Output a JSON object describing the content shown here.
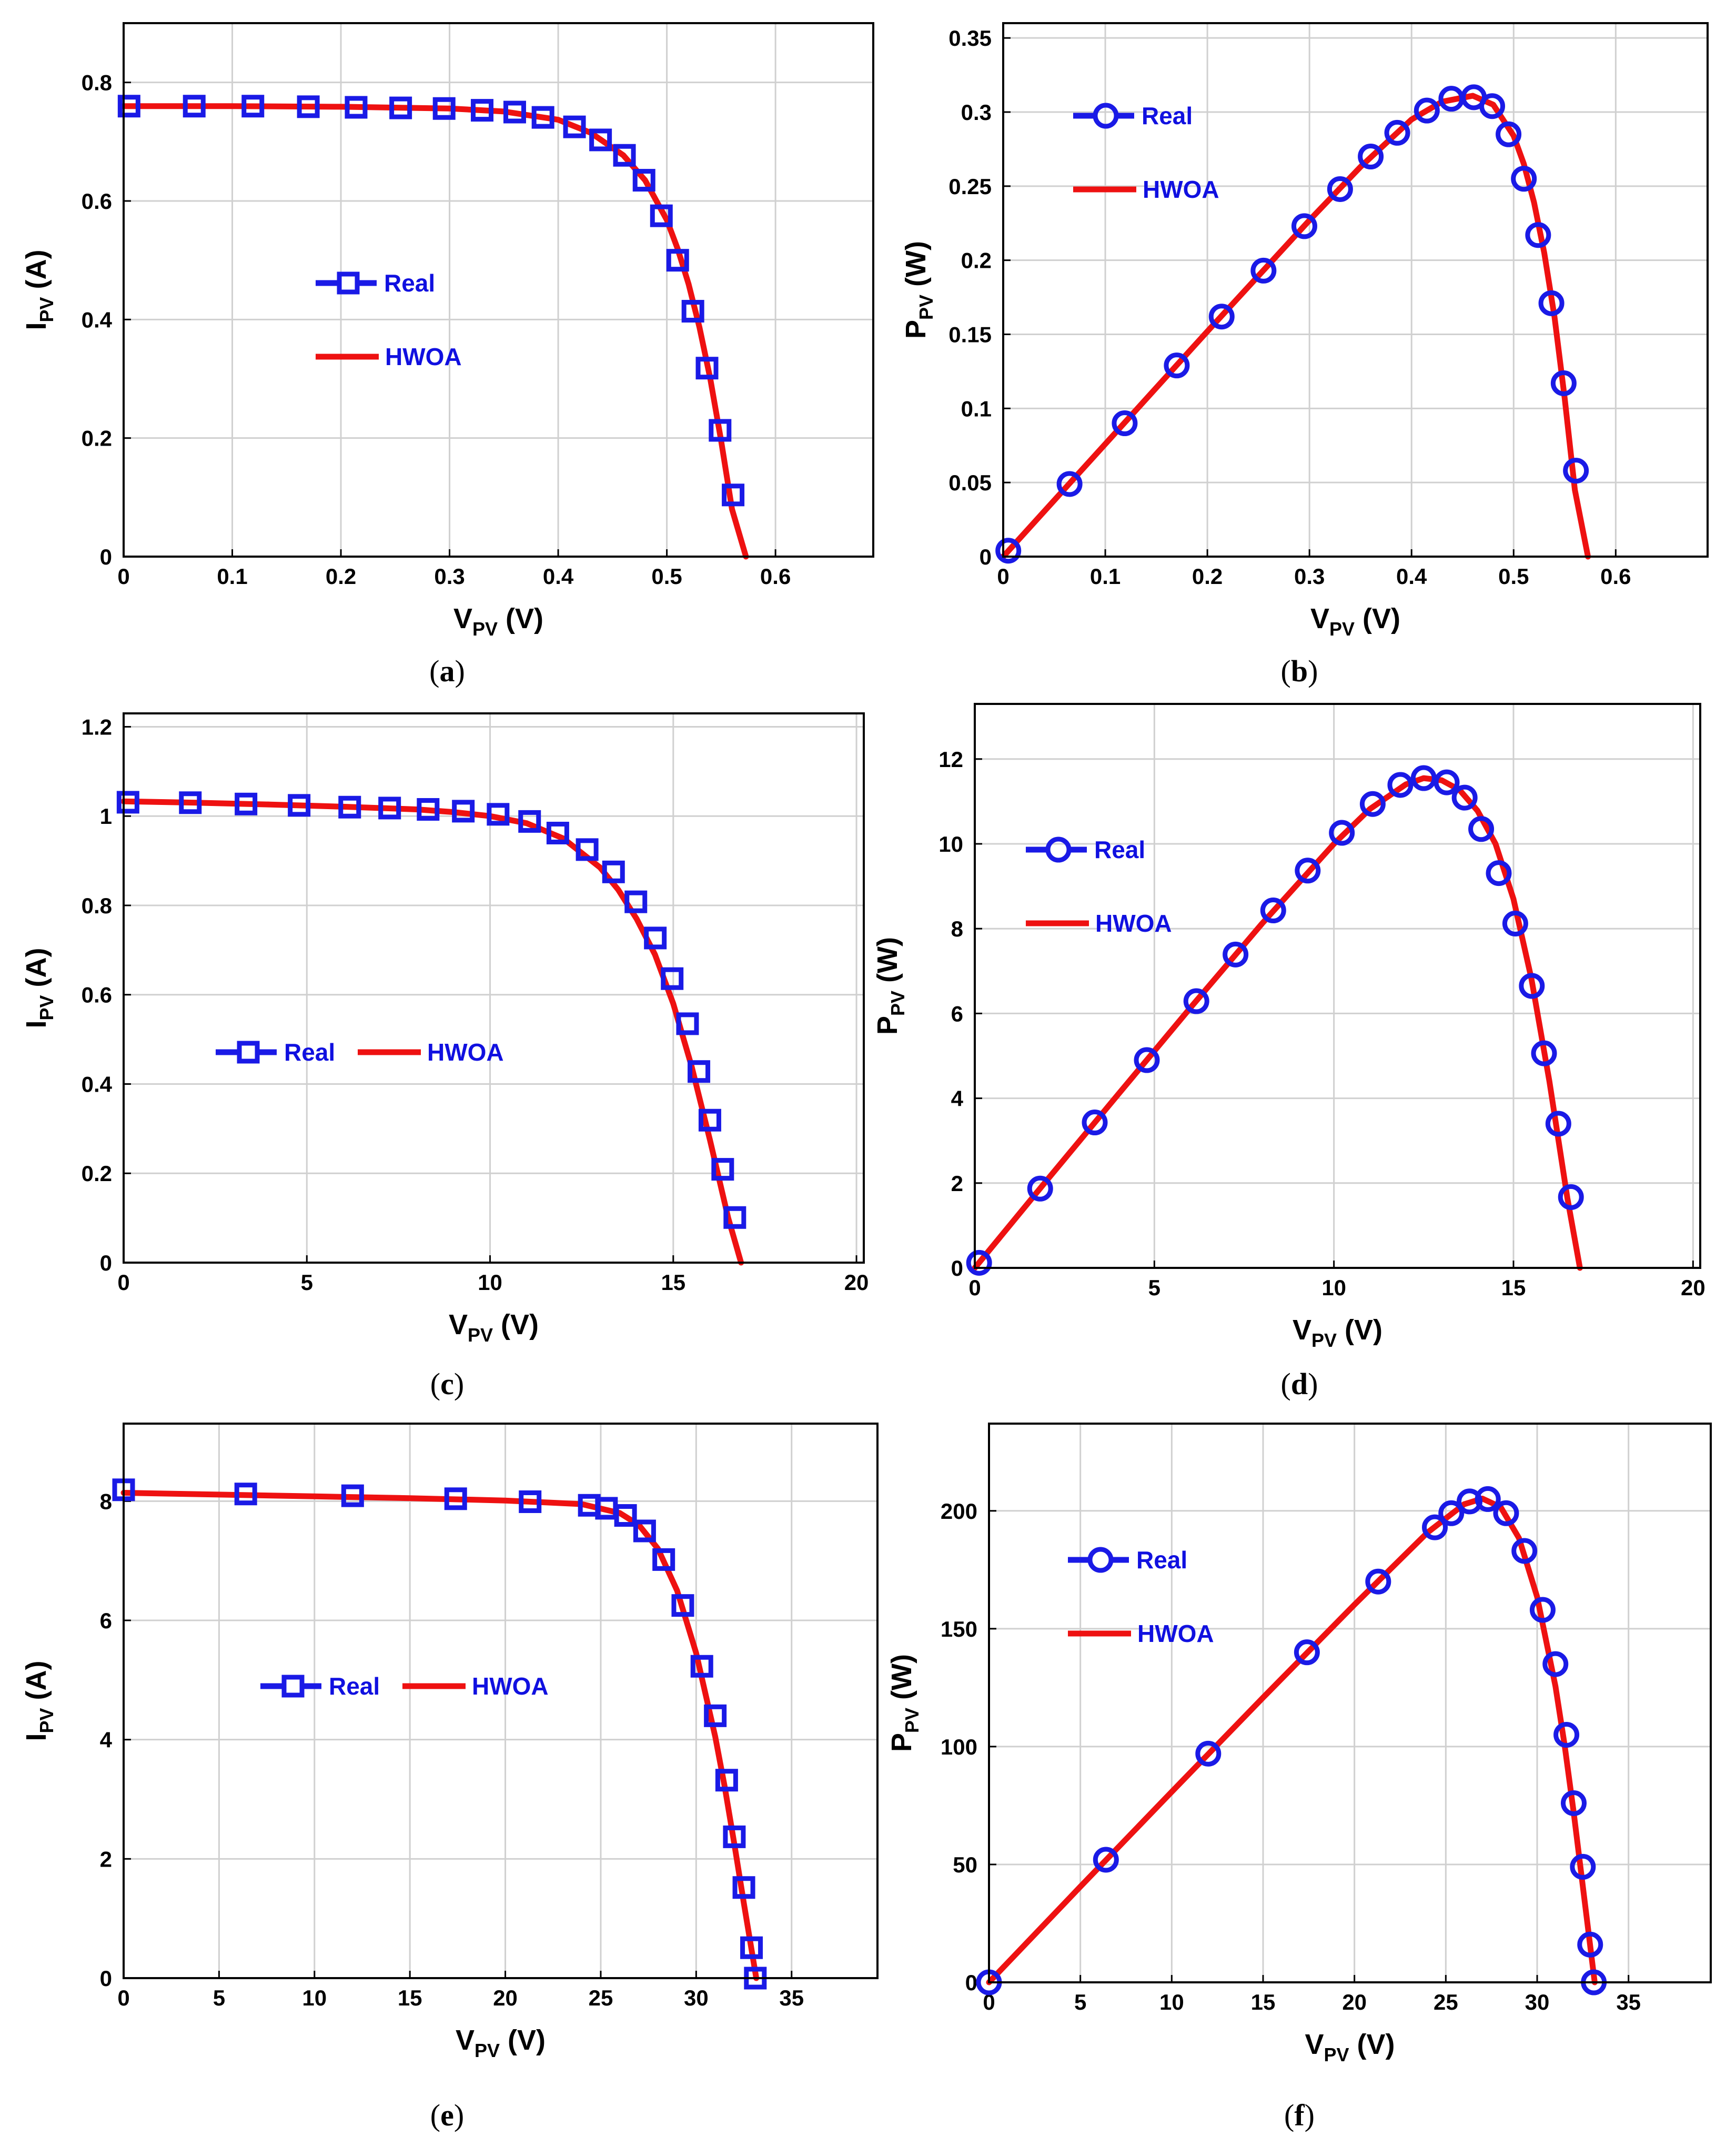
{
  "figure": {
    "colors": {
      "real": "#1a1ae6",
      "model": "#ee1111",
      "grid": "#d0d0d0",
      "axis": "#000000"
    },
    "legend_labels": {
      "real": "Real",
      "model": "HWOA"
    }
  },
  "chart_data": [
    {
      "id": "a",
      "panel_label": "a",
      "type": "line",
      "ylabel_main": "I",
      "ylabel_sub": "PV",
      "ylabel_unit": " (A)",
      "xlabel_main": "V",
      "xlabel_sub": "PV",
      "xlabel_unit": " (V)",
      "xlim": [
        0,
        0.69
      ],
      "ylim": [
        0,
        0.9
      ],
      "xticks": [
        0,
        0.1,
        0.2,
        0.3,
        0.4,
        0.5,
        0.6
      ],
      "xtick_labels": [
        "0",
        "0.1",
        "0.2",
        "0.3",
        "0.4",
        "0.5",
        "0.6"
      ],
      "yticks": [
        0,
        0.2,
        0.4,
        0.6,
        0.8
      ],
      "ytick_labels": [
        "0",
        "0.2",
        "0.4",
        "0.6",
        "0.8"
      ],
      "grid": true,
      "marker": "square",
      "legend": {
        "layout": "vertical",
        "position": "center-left"
      },
      "series": [
        {
          "name": "Real",
          "style": "markers",
          "x": [
            0.005,
            0.065,
            0.119,
            0.17,
            0.214,
            0.255,
            0.295,
            0.33,
            0.36,
            0.386,
            0.415,
            0.439,
            0.461,
            0.479,
            0.495,
            0.51,
            0.524,
            0.537,
            0.549,
            0.561
          ],
          "y": [
            0.76,
            0.76,
            0.76,
            0.759,
            0.758,
            0.757,
            0.756,
            0.753,
            0.75,
            0.741,
            0.725,
            0.703,
            0.677,
            0.635,
            0.575,
            0.5,
            0.414,
            0.318,
            0.213,
            0.104
          ]
        },
        {
          "name": "HWOA",
          "style": "line",
          "x": [
            0.0,
            0.1,
            0.2,
            0.3,
            0.35,
            0.4,
            0.43,
            0.46,
            0.48,
            0.5,
            0.51,
            0.52,
            0.53,
            0.54,
            0.55,
            0.56,
            0.5728
          ],
          "y": [
            0.76,
            0.76,
            0.759,
            0.756,
            0.751,
            0.737,
            0.715,
            0.677,
            0.635,
            0.568,
            0.519,
            0.46,
            0.387,
            0.3,
            0.195,
            0.08,
            0.0
          ]
        }
      ]
    },
    {
      "id": "b",
      "panel_label": "b",
      "type": "line",
      "ylabel_main": "P",
      "ylabel_sub": "PV",
      "ylabel_unit": " (W)",
      "xlabel_main": "V",
      "xlabel_sub": "PV",
      "xlabel_unit": " (V)",
      "xlim": [
        0,
        0.69
      ],
      "ylim": [
        0,
        0.36
      ],
      "xticks": [
        0,
        0.1,
        0.2,
        0.3,
        0.4,
        0.5,
        0.6
      ],
      "xtick_labels": [
        "0",
        "0.1",
        "0.2",
        "0.3",
        "0.4",
        "0.5",
        "0.6"
      ],
      "yticks": [
        0,
        0.05,
        0.1,
        0.15,
        0.2,
        0.25,
        0.3,
        0.35
      ],
      "ytick_labels": [
        "0",
        "0.05",
        "0.1",
        "0.15",
        "0.2",
        "0.25",
        "0.3",
        "0.35"
      ],
      "grid": true,
      "marker": "circle",
      "legend": {
        "layout": "vertical",
        "position": "top-left"
      },
      "series": [
        {
          "name": "Real",
          "style": "markers",
          "x": [
            0.005,
            0.065,
            0.119,
            0.17,
            0.214,
            0.255,
            0.295,
            0.33,
            0.36,
            0.386,
            0.415,
            0.439,
            0.461,
            0.479,
            0.495,
            0.51,
            0.524,
            0.537,
            0.549,
            0.561
          ],
          "y": [
            0.004,
            0.049,
            0.09,
            0.129,
            0.162,
            0.193,
            0.223,
            0.248,
            0.27,
            0.286,
            0.301,
            0.309,
            0.31,
            0.304,
            0.285,
            0.255,
            0.217,
            0.171,
            0.117,
            0.058
          ]
        },
        {
          "name": "HWOA",
          "style": "line",
          "x": [
            0.0,
            0.1,
            0.2,
            0.3,
            0.35,
            0.4,
            0.43,
            0.46,
            0.48,
            0.5,
            0.51,
            0.52,
            0.53,
            0.54,
            0.55,
            0.56,
            0.5728
          ],
          "y": [
            0.0,
            0.076,
            0.152,
            0.227,
            0.263,
            0.295,
            0.307,
            0.311,
            0.305,
            0.284,
            0.265,
            0.239,
            0.205,
            0.162,
            0.107,
            0.045,
            0.0
          ]
        }
      ]
    },
    {
      "id": "c",
      "panel_label": "c",
      "type": "line",
      "ylabel_main": "I",
      "ylabel_sub": "PV",
      "ylabel_unit": " (A)",
      "xlabel_main": "V",
      "xlabel_sub": "PV",
      "xlabel_unit": " (V)",
      "xlim": [
        0,
        20.2
      ],
      "ylim": [
        0,
        1.23
      ],
      "xticks": [
        0,
        5,
        10,
        15,
        20
      ],
      "xtick_labels": [
        "0",
        "5",
        "10",
        "15",
        "20"
      ],
      "yticks": [
        0,
        0.2,
        0.4,
        0.6,
        0.8,
        1,
        1.2
      ],
      "ytick_labels": [
        "0",
        "0.2",
        "0.4",
        "0.6",
        "0.8",
        "1",
        "1.2"
      ],
      "grid": true,
      "marker": "square",
      "legend": {
        "layout": "horizontal",
        "position": "center-left"
      },
      "series": [
        {
          "name": "Real",
          "style": "markers",
          "x": [
            0.12,
            1.82,
            3.34,
            4.79,
            6.17,
            7.26,
            8.31,
            9.27,
            10.22,
            11.08,
            11.85,
            12.65,
            13.37,
            13.98,
            14.51,
            14.97,
            15.39,
            15.7,
            16.0,
            16.35,
            16.68
          ],
          "y": [
            1.031,
            1.03,
            1.027,
            1.024,
            1.02,
            1.018,
            1.015,
            1.011,
            1.004,
            0.988,
            0.962,
            0.925,
            0.875,
            0.808,
            0.727,
            0.636,
            0.535,
            0.428,
            0.319,
            0.209,
            0.101
          ]
        },
        {
          "name": "HWOA",
          "style": "line",
          "x": [
            0.0,
            2,
            4,
            6,
            8,
            9,
            10,
            11,
            12,
            13,
            13.5,
            14,
            14.5,
            15,
            15.5,
            16,
            16.5,
            16.85
          ],
          "y": [
            1.033,
            1.03,
            1.026,
            1.021,
            1.015,
            1.009,
            1.0,
            0.984,
            0.95,
            0.885,
            0.835,
            0.77,
            0.69,
            0.58,
            0.44,
            0.275,
            0.1,
            0.0
          ]
        }
      ]
    },
    {
      "id": "d",
      "panel_label": "d",
      "type": "line",
      "ylabel_main": "P",
      "ylabel_sub": "PV",
      "ylabel_unit": " (W)",
      "xlabel_main": "V",
      "xlabel_sub": "PV",
      "xlabel_unit": " (V)",
      "xlim": [
        0,
        20.2
      ],
      "ylim": [
        0,
        13.3
      ],
      "xticks": [
        0,
        5,
        10,
        15,
        20
      ],
      "xtick_labels": [
        "0",
        "5",
        "10",
        "15",
        "20"
      ],
      "yticks": [
        0,
        2,
        4,
        6,
        8,
        10,
        12
      ],
      "ytick_labels": [
        "0",
        "2",
        "4",
        "6",
        "8",
        "10",
        "12"
      ],
      "grid": true,
      "marker": "circle",
      "legend": {
        "layout": "vertical",
        "position": "center-left"
      },
      "series": [
        {
          "name": "Real",
          "style": "markers",
          "x": [
            0.12,
            1.82,
            3.34,
            4.79,
            6.17,
            7.26,
            8.31,
            9.27,
            10.22,
            11.08,
            11.85,
            12.5,
            13.14,
            13.64,
            14.1,
            14.59,
            15.05,
            15.51,
            15.85,
            16.25,
            16.6
          ],
          "y": [
            0.12,
            1.87,
            3.43,
            4.9,
            6.29,
            7.39,
            8.43,
            9.37,
            10.26,
            10.94,
            11.39,
            11.55,
            11.45,
            11.09,
            10.35,
            9.31,
            8.12,
            6.65,
            5.06,
            3.4,
            1.67
          ]
        },
        {
          "name": "HWOA",
          "style": "line",
          "x": [
            0.0,
            2,
            4,
            6,
            8,
            10,
            11,
            12,
            12.5,
            13,
            13.5,
            14,
            14.5,
            15,
            15.5,
            16,
            16.5,
            16.85
          ],
          "y": [
            0.0,
            2.06,
            4.1,
            6.13,
            8.12,
            10.0,
            10.82,
            11.4,
            11.55,
            11.5,
            11.27,
            10.78,
            10.0,
            8.7,
            6.82,
            4.4,
            1.65,
            0.0
          ]
        }
      ]
    },
    {
      "id": "e",
      "panel_label": "e",
      "type": "line",
      "ylabel_main": "I",
      "ylabel_sub": "PV",
      "ylabel_unit": " (A)",
      "xlabel_main": "V",
      "xlabel_sub": "PV",
      "xlabel_unit": " (V)",
      "xlim": [
        0,
        39.5
      ],
      "ylim": [
        0,
        9.3
      ],
      "xticks": [
        0,
        5,
        10,
        15,
        20,
        25,
        30,
        35
      ],
      "xtick_labels": [
        "0",
        "5",
        "10",
        "15",
        "20",
        "25",
        "30",
        "35"
      ],
      "yticks": [
        0,
        2,
        4,
        6,
        8
      ],
      "ytick_labels": [
        "0",
        "2",
        "4",
        "6",
        "8"
      ],
      "grid": true,
      "marker": "square",
      "legend": {
        "layout": "horizontal",
        "position": "center-left"
      },
      "series": [
        {
          "name": "Real",
          "style": "markers",
          "x": [
            0.0,
            6.4,
            12.0,
            17.4,
            21.3,
            24.4,
            25.3,
            26.3,
            27.3,
            28.3,
            29.3,
            30.3,
            31.0,
            31.6,
            32.0,
            32.5,
            32.9,
            33.1
          ],
          "y": [
            8.19,
            8.12,
            8.09,
            8.04,
            7.99,
            7.93,
            7.88,
            7.76,
            7.5,
            7.02,
            6.25,
            5.23,
            4.4,
            3.32,
            2.37,
            1.52,
            0.51,
            0.0
          ]
        },
        {
          "name": "HWOA",
          "style": "line",
          "x": [
            0.0,
            5,
            10,
            15,
            20,
            24,
            26,
            27,
            28,
            29,
            30,
            31,
            31.5,
            32,
            32.5,
            33.15
          ],
          "y": [
            8.14,
            8.11,
            8.08,
            8.05,
            8.01,
            7.95,
            7.8,
            7.6,
            7.2,
            6.5,
            5.45,
            4.05,
            3.2,
            2.25,
            1.25,
            0.0
          ]
        }
      ]
    },
    {
      "id": "f",
      "panel_label": "f",
      "type": "line",
      "ylabel_main": "P",
      "ylabel_sub": "PV",
      "ylabel_unit": " (W)",
      "xlabel_main": "V",
      "xlabel_sub": "PV",
      "xlabel_unit": " (V)",
      "xlim": [
        0,
        39.5
      ],
      "ylim": [
        0,
        237
      ],
      "xticks": [
        0,
        5,
        10,
        15,
        20,
        25,
        30,
        35
      ],
      "xtick_labels": [
        "0",
        "5",
        "10",
        "15",
        "20",
        "25",
        "30",
        "35"
      ],
      "yticks": [
        0,
        50,
        100,
        150,
        200
      ],
      "ytick_labels": [
        "0",
        "50",
        "100",
        "150",
        "200"
      ],
      "grid": true,
      "marker": "circle",
      "legend": {
        "layout": "vertical",
        "position": "top-left"
      },
      "series": [
        {
          "name": "Real",
          "style": "markers",
          "x": [
            0.0,
            6.4,
            12.0,
            17.4,
            21.3,
            24.4,
            25.3,
            26.3,
            27.3,
            28.3,
            29.3,
            30.3,
            31.0,
            31.6,
            32.0,
            32.5,
            32.9,
            33.1
          ],
          "y": [
            0.0,
            52,
            97,
            140,
            170,
            193,
            199,
            204,
            205,
            199,
            183,
            158,
            135,
            105,
            76,
            49,
            16,
            0.0
          ]
        },
        {
          "name": "HWOA",
          "style": "line",
          "x": [
            0.0,
            5,
            10,
            15,
            20,
            24,
            26,
            27,
            28,
            29,
            30,
            31,
            31.5,
            32,
            32.5,
            33.15
          ],
          "y": [
            0.0,
            40.6,
            80.8,
            120.8,
            160.2,
            190.8,
            202.8,
            205.2,
            201.6,
            188.5,
            163.5,
            125.6,
            100.8,
            72.0,
            40.6,
            0.0
          ]
        }
      ]
    }
  ]
}
